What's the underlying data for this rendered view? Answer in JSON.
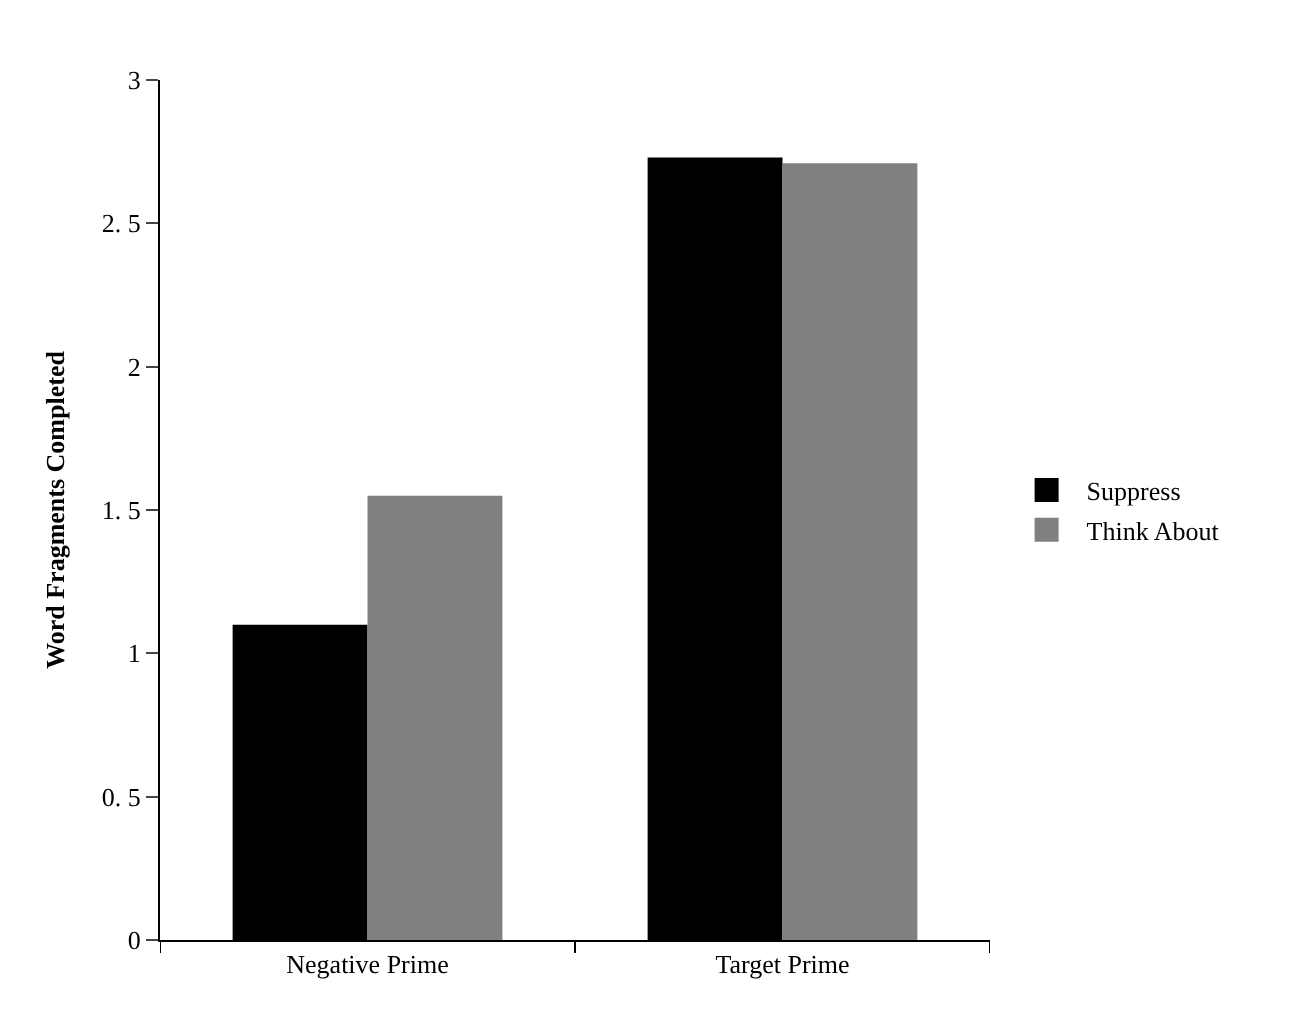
{
  "chart_data": {
    "type": "bar",
    "ylabel": "Word Fragments Completed",
    "categories": [
      "Negative Prime",
      "Target Prime"
    ],
    "series": [
      {
        "name": "Suppress",
        "color": "#000000",
        "values": [
          1.1,
          2.73
        ]
      },
      {
        "name": "Think About",
        "color": "#808080",
        "values": [
          1.55,
          2.71
        ]
      }
    ],
    "ylim": [
      0,
      3
    ],
    "yticks": [
      0,
      {
        "value": 0.5,
        "label": "0. 5"
      },
      1,
      {
        "value": 1.5,
        "label": "1. 5"
      },
      2,
      {
        "value": 2.5,
        "label": "2. 5"
      },
      3
    ],
    "grid": false,
    "legend": "right"
  }
}
